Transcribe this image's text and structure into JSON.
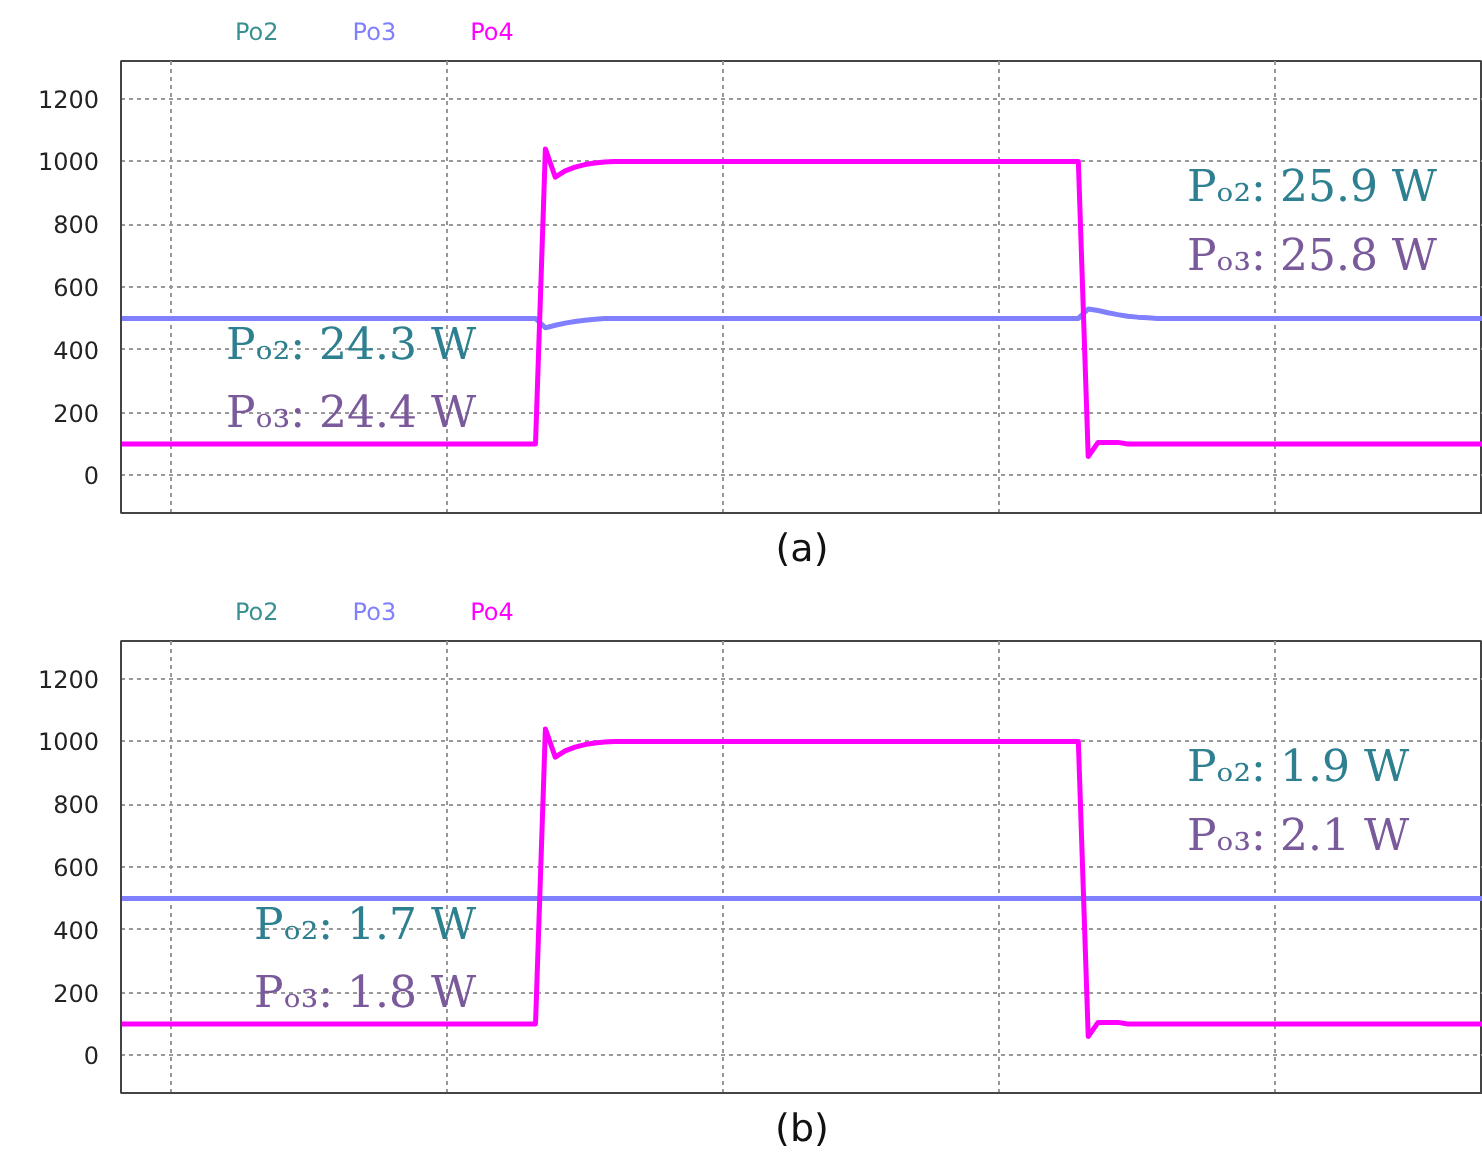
{
  "chart_data": [
    {
      "type": "line",
      "title": "(a)",
      "tick_labels": "y",
      "grid": true,
      "line_style": "solid",
      "categories": [
        null,
        null,
        null,
        null,
        null,
        null,
        null,
        null,
        null,
        null,
        null,
        null,
        null,
        null,
        null,
        null,
        null,
        null,
        null,
        null,
        null,
        null,
        null,
        null,
        null,
        null,
        null,
        null,
        null,
        null,
        null,
        null,
        null,
        null,
        null,
        null,
        null,
        null,
        null,
        null,
        null,
        null,
        null,
        null,
        null,
        null,
        null,
        null,
        null,
        null,
        null,
        null,
        null,
        null,
        null,
        null,
        null,
        null,
        null,
        null,
        null,
        null,
        null,
        null,
        null,
        null,
        null,
        null,
        null,
        null,
        null,
        null,
        null,
        null,
        null,
        null,
        null,
        null,
        null,
        null,
        null,
        null,
        null,
        null,
        null,
        null,
        null,
        null,
        null,
        null,
        null,
        null,
        null,
        null,
        null,
        null,
        null,
        null,
        null,
        null,
        null,
        null,
        null,
        null,
        null,
        null,
        null,
        null,
        null,
        null,
        null,
        null,
        null,
        null,
        null,
        null,
        null,
        null,
        null,
        null,
        null,
        null,
        null,
        null,
        null,
        null,
        null,
        null,
        null,
        null,
        null,
        null,
        null,
        null,
        null,
        null,
        null,
        null,
        null
      ],
      "ylim": [
        -120,
        1320
      ],
      "yticks": [
        0,
        200,
        400,
        600,
        800,
        1000,
        1200
      ],
      "series": [
        {
          "name": "Po2",
          "color": "#3a9090",
          "values": [
            null,
            null,
            null,
            null,
            null,
            null,
            null,
            null,
            null,
            null,
            null,
            null,
            null,
            null,
            null,
            null,
            null,
            null,
            null,
            null,
            null,
            null,
            null,
            null,
            null,
            null,
            null,
            null,
            null,
            null,
            null,
            null,
            null,
            null,
            null,
            null,
            null,
            null,
            null,
            null,
            null,
            null,
            null,
            null,
            null,
            null,
            null,
            null,
            null,
            null,
            null,
            null,
            null,
            null,
            null,
            null,
            null,
            null,
            null,
            null,
            null,
            null,
            null,
            null,
            null,
            null,
            null,
            null,
            null,
            null,
            null,
            null,
            null,
            null,
            null,
            null,
            null,
            null,
            null,
            null,
            null,
            null,
            null,
            null,
            null,
            null,
            null,
            null,
            null,
            null,
            null,
            null,
            null,
            null,
            null,
            null,
            null,
            null,
            null,
            null,
            null,
            null,
            null,
            null,
            null,
            null,
            null,
            null,
            null,
            null,
            null,
            null,
            null,
            null,
            null,
            null,
            null,
            null,
            null,
            null,
            null,
            null,
            null,
            null,
            null,
            null,
            null,
            null,
            null,
            null,
            null,
            null,
            null,
            null,
            null,
            null,
            null,
            null,
            null
          ]
        },
        {
          "name": "Po3",
          "color": "#8080ff",
          "values": [
            500,
            500,
            500,
            500,
            500,
            500,
            500,
            500,
            500,
            500,
            500,
            500,
            500,
            500,
            500,
            500,
            500,
            500,
            500,
            500,
            500,
            500,
            500,
            500,
            500,
            500,
            500,
            500,
            500,
            500,
            500,
            500,
            500,
            500,
            500,
            500,
            500,
            500,
            500,
            500,
            500,
            500,
            500,
            470,
            478,
            485,
            490,
            494,
            497,
            500,
            500,
            500,
            500,
            500,
            500,
            500,
            500,
            500,
            500,
            500,
            500,
            500,
            500,
            500,
            500,
            500,
            500,
            500,
            500,
            500,
            500,
            500,
            500,
            500,
            500,
            500,
            500,
            500,
            500,
            500,
            500,
            500,
            500,
            500,
            500,
            500,
            500,
            500,
            500,
            500,
            500,
            500,
            500,
            500,
            500,
            500,
            500,
            500,
            530,
            525,
            518,
            512,
            507,
            504,
            502,
            500,
            500,
            500,
            500,
            500,
            500,
            500,
            500,
            500,
            500,
            500,
            500,
            500,
            500,
            500,
            500,
            500,
            500,
            500,
            500,
            500,
            500,
            500,
            500,
            500,
            500,
            500,
            500,
            500,
            500,
            500,
            500,
            500,
            500
          ]
        },
        {
          "name": "Po4",
          "color": "#ff00ff",
          "values": [
            100,
            100,
            100,
            100,
            100,
            100,
            100,
            100,
            100,
            100,
            100,
            100,
            100,
            100,
            100,
            100,
            100,
            100,
            100,
            100,
            100,
            100,
            100,
            100,
            100,
            100,
            100,
            100,
            100,
            100,
            100,
            100,
            100,
            100,
            100,
            100,
            100,
            100,
            100,
            100,
            100,
            100,
            100,
            1040,
            950,
            970,
            982,
            990,
            995,
            998,
            1000,
            1000,
            1000,
            1000,
            1000,
            1000,
            1000,
            1000,
            1000,
            1000,
            1000,
            1000,
            1000,
            1000,
            1000,
            1000,
            1000,
            1000,
            1000,
            1000,
            1000,
            1000,
            1000,
            1000,
            1000,
            1000,
            1000,
            1000,
            1000,
            1000,
            1000,
            1000,
            1000,
            1000,
            1000,
            1000,
            1000,
            1000,
            1000,
            1000,
            1000,
            1000,
            1000,
            1000,
            1000,
            1000,
            1000,
            1000,
            60,
            105,
            105,
            105,
            100,
            100,
            100,
            100,
            100,
            100,
            100,
            100,
            100,
            100,
            100,
            100,
            100,
            100,
            100,
            100,
            100,
            100,
            100,
            100,
            100,
            100,
            100,
            100,
            100,
            100,
            100,
            100,
            100,
            100,
            100,
            100,
            100,
            100,
            100,
            100,
            100
          ]
        }
      ],
      "annotations": [
        "Pₒ₂: 24.3 W",
        "Pₒ₃: 24.4 W",
        "Pₒ₂: 25.9 W",
        "Pₒ₃: 25.8 W"
      ]
    },
    {
      "type": "line",
      "title": "(b)",
      "tick_labels": "y",
      "grid": true,
      "line_style": "solid",
      "categories": [
        null,
        null,
        null,
        null,
        null,
        null,
        null,
        null,
        null,
        null,
        null,
        null,
        null,
        null,
        null,
        null,
        null,
        null,
        null,
        null,
        null,
        null,
        null,
        null,
        null,
        null,
        null,
        null,
        null,
        null,
        null,
        null,
        null,
        null,
        null,
        null,
        null,
        null,
        null,
        null,
        null,
        null,
        null,
        null,
        null,
        null,
        null,
        null,
        null,
        null,
        null,
        null,
        null,
        null,
        null,
        null,
        null,
        null,
        null,
        null,
        null,
        null,
        null,
        null,
        null,
        null,
        null,
        null,
        null,
        null,
        null,
        null,
        null,
        null,
        null,
        null,
        null,
        null,
        null,
        null,
        null,
        null,
        null,
        null,
        null,
        null,
        null,
        null,
        null,
        null,
        null,
        null,
        null,
        null,
        null,
        null,
        null,
        null,
        null,
        null,
        null,
        null,
        null,
        null,
        null,
        null,
        null,
        null,
        null,
        null,
        null,
        null,
        null,
        null,
        null,
        null,
        null,
        null,
        null,
        null,
        null,
        null,
        null,
        null,
        null,
        null,
        null,
        null,
        null,
        null,
        null,
        null,
        null,
        null,
        null,
        null,
        null,
        null,
        null
      ],
      "ylim": [
        -120,
        1320
      ],
      "yticks": [
        0,
        200,
        400,
        600,
        800,
        1000,
        1200
      ],
      "series": [
        {
          "name": "Po2",
          "color": "#3a9090",
          "values": [
            null,
            null,
            null,
            null,
            null,
            null,
            null,
            null,
            null,
            null,
            null,
            null,
            null,
            null,
            null,
            null,
            null,
            null,
            null,
            null,
            null,
            null,
            null,
            null,
            null,
            null,
            null,
            null,
            null,
            null,
            null,
            null,
            null,
            null,
            null,
            null,
            null,
            null,
            null,
            null,
            null,
            null,
            null,
            null,
            null,
            null,
            null,
            null,
            null,
            null,
            null,
            null,
            null,
            null,
            null,
            null,
            null,
            null,
            null,
            null,
            null,
            null,
            null,
            null,
            null,
            null,
            null,
            null,
            null,
            null,
            null,
            null,
            null,
            null,
            null,
            null,
            null,
            null,
            null,
            null,
            null,
            null,
            null,
            null,
            null,
            null,
            null,
            null,
            null,
            null,
            null,
            null,
            null,
            null,
            null,
            null,
            null,
            null,
            null,
            null,
            null,
            null,
            null,
            null,
            null,
            null,
            null,
            null,
            null,
            null,
            null,
            null,
            null,
            null,
            null,
            null,
            null,
            null,
            null,
            null,
            null,
            null,
            null,
            null,
            null,
            null,
            null,
            null,
            null,
            null,
            null,
            null,
            null,
            null,
            null,
            null,
            null,
            null,
            null
          ]
        },
        {
          "name": "Po3",
          "color": "#8080ff",
          "values": [
            500,
            500,
            500,
            500,
            500,
            500,
            500,
            500,
            500,
            500,
            500,
            500,
            500,
            500,
            500,
            500,
            500,
            500,
            500,
            500,
            500,
            500,
            500,
            500,
            500,
            500,
            500,
            500,
            500,
            500,
            500,
            500,
            500,
            500,
            500,
            500,
            500,
            500,
            500,
            500,
            500,
            500,
            500,
            500,
            500,
            500,
            500,
            500,
            500,
            500,
            500,
            500,
            500,
            500,
            500,
            500,
            500,
            500,
            500,
            500,
            500,
            500,
            500,
            500,
            500,
            500,
            500,
            500,
            500,
            500,
            500,
            500,
            500,
            500,
            500,
            500,
            500,
            500,
            500,
            500,
            500,
            500,
            500,
            500,
            500,
            500,
            500,
            500,
            500,
            500,
            500,
            500,
            500,
            500,
            500,
            500,
            500,
            500,
            500,
            500,
            500,
            500,
            500,
            500,
            500,
            500,
            500,
            500,
            500,
            500,
            500,
            500,
            500,
            500,
            500,
            500,
            500,
            500,
            500,
            500,
            500,
            500,
            500,
            500,
            500,
            500,
            500,
            500,
            500,
            500,
            500,
            500,
            500,
            500,
            500,
            500,
            500,
            500,
            500
          ]
        },
        {
          "name": "Po4",
          "color": "#ff00ff",
          "values": [
            100,
            100,
            100,
            100,
            100,
            100,
            100,
            100,
            100,
            100,
            100,
            100,
            100,
            100,
            100,
            100,
            100,
            100,
            100,
            100,
            100,
            100,
            100,
            100,
            100,
            100,
            100,
            100,
            100,
            100,
            100,
            100,
            100,
            100,
            100,
            100,
            100,
            100,
            100,
            100,
            100,
            100,
            100,
            1040,
            950,
            970,
            982,
            990,
            995,
            998,
            1000,
            1000,
            1000,
            1000,
            1000,
            1000,
            1000,
            1000,
            1000,
            1000,
            1000,
            1000,
            1000,
            1000,
            1000,
            1000,
            1000,
            1000,
            1000,
            1000,
            1000,
            1000,
            1000,
            1000,
            1000,
            1000,
            1000,
            1000,
            1000,
            1000,
            1000,
            1000,
            1000,
            1000,
            1000,
            1000,
            1000,
            1000,
            1000,
            1000,
            1000,
            1000,
            1000,
            1000,
            1000,
            1000,
            1000,
            1000,
            60,
            105,
            105,
            105,
            100,
            100,
            100,
            100,
            100,
            100,
            100,
            100,
            100,
            100,
            100,
            100,
            100,
            100,
            100,
            100,
            100,
            100,
            100,
            100,
            100,
            100,
            100,
            100,
            100,
            100,
            100,
            100,
            100,
            100,
            100,
            100,
            100,
            100,
            100,
            100,
            100
          ]
        }
      ],
      "annotations": [
        "Pₒ₂: 1.7 W",
        "Pₒ₃: 1.8 W",
        "Pₒ₂: 1.9 W",
        "Pₒ₃: 2.1 W"
      ]
    }
  ]
}
